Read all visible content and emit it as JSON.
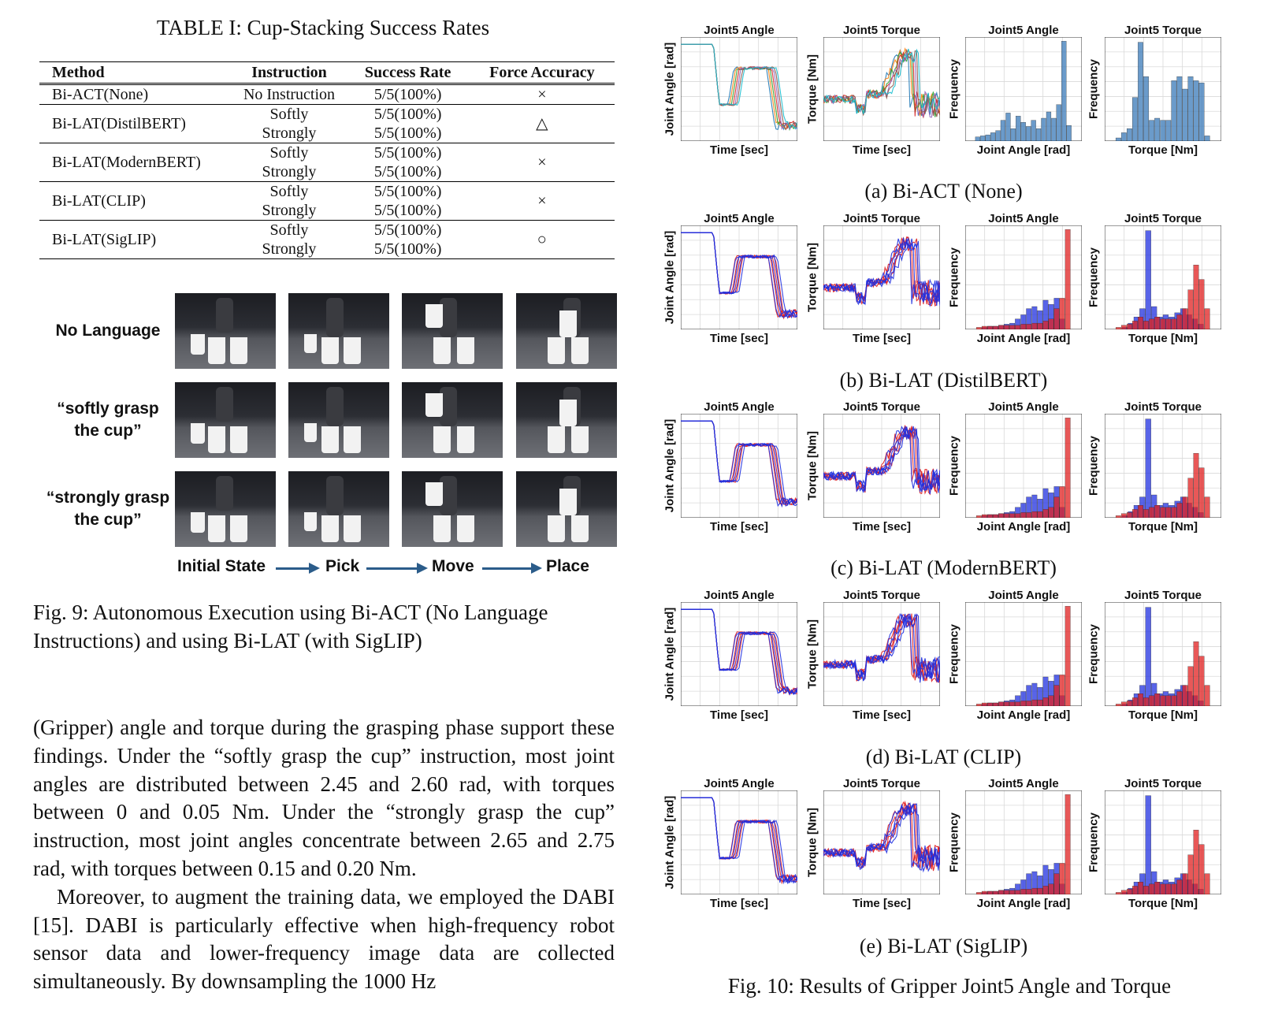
{
  "table": {
    "title": "TABLE I: Cup-Stacking Success Rates",
    "headers": [
      "Method",
      "Instruction",
      "Success Rate",
      "Force Accuracy"
    ],
    "rows": [
      {
        "method": "Bi-ACT(None)",
        "instr": [
          "No Instruction"
        ],
        "rate": [
          "5/5(100%)"
        ],
        "force": "×"
      },
      {
        "method": "Bi-LAT(DistilBERT)",
        "instr": [
          "Softly",
          "Strongly"
        ],
        "rate": [
          "5/5(100%)",
          "5/5(100%)"
        ],
        "force": "△"
      },
      {
        "method": "Bi-LAT(ModernBERT)",
        "instr": [
          "Softly",
          "Strongly"
        ],
        "rate": [
          "5/5(100%)",
          "5/5(100%)"
        ],
        "force": "×"
      },
      {
        "method": "Bi-LAT(CLIP)",
        "instr": [
          "Softly",
          "Strongly"
        ],
        "rate": [
          "5/5(100%)",
          "5/5(100%)"
        ],
        "force": "×"
      },
      {
        "method": "Bi-LAT(SigLIP)",
        "instr": [
          "Softly",
          "Strongly"
        ],
        "rate": [
          "5/5(100%)",
          "5/5(100%)"
        ],
        "force": "○"
      }
    ]
  },
  "fig9": {
    "row_labels": [
      "No Language",
      "“softly grasp\nthe cup”",
      "“strongly grasp\nthe cup”"
    ],
    "stages": [
      "Initial State",
      "Pick",
      "Move",
      "Place"
    ],
    "caption": "Fig. 9: Autonomous Execution using Bi-ACT (No Language Instructions) and using Bi-LAT (with SigLIP)"
  },
  "body": {
    "paragraph1": "(Gripper) angle and torque during the grasping phase support these findings. Under the “softly grasp the cup” instruction, most joint angles are distributed between 2.45 and 2.60 rad, with torques between 0 and 0.05 Nm. Under the “strongly grasp the cup” instruction, most joint angles concentrate between 2.65 and 2.75 rad, with torques between 0.15 and 0.20 Nm.",
    "paragraph2": "Moreover, to augment the training data, we employed the DABI [15]. DABI is particularly effective when high-frequency robot sensor data and lower-frequency image data are collected simultaneously. By downsampling the 1000 Hz"
  },
  "fig10": {
    "caption": "Fig. 10: Results of Gripper Joint5 Angle and Torque",
    "panel_titles": [
      "Joint5 Angle",
      "Joint5 Torque",
      "Joint5 Angle",
      "Joint5 Torque"
    ],
    "xlabels": [
      "Time [sec]",
      "Time [sec]",
      "Joint Angle [rad]",
      "Torque [Nm]"
    ],
    "ylabels": [
      "Joint Angle [rad]",
      "Torque [Nm]",
      "Frequency",
      "Frequency"
    ],
    "colors": {
      "hist_single": "#3a7ab8",
      "blue": "#2030e0",
      "red": "#e02020",
      "grid": "#d9d9d9"
    },
    "subfigures": [
      {
        "label": "(a) Bi-ACT (None)",
        "mode": "multi"
      },
      {
        "label": "(b) Bi-LAT (DistilBERT)",
        "mode": "rb"
      },
      {
        "label": "(c) Bi-LAT (ModernBERT)",
        "mode": "rb"
      },
      {
        "label": "(d) Bi-LAT (CLIP)",
        "mode": "rb"
      },
      {
        "label": "(e) Bi-LAT (SigLIP)",
        "mode": "rb"
      }
    ]
  }
}
